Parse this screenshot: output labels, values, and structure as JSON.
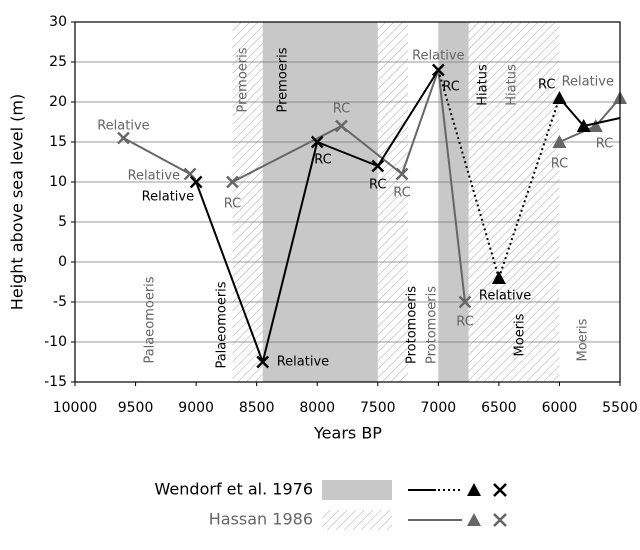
{
  "chart_data": {
    "type": "line",
    "xlabel": "Years BP",
    "ylabel": "Height above sea level (m)",
    "xlim": [
      10000,
      5500
    ],
    "xticks": [
      10000,
      9500,
      9000,
      8500,
      8000,
      7500,
      7000,
      6500,
      6000,
      5500
    ],
    "ylim": [
      -15,
      30
    ],
    "yticks": [
      -15,
      -10,
      -5,
      0,
      5,
      10,
      15,
      20,
      25,
      30
    ],
    "grid": true,
    "series": [
      {
        "name": "Wendorf et al. 1976",
        "color": "#000000",
        "region_style": "solid",
        "region_color": "#c8c8c8",
        "x": [
          9000,
          8450,
          8000,
          7500,
          7000,
          6500,
          6000,
          5800,
          5500
        ],
        "values": [
          10,
          -12.5,
          15,
          12,
          24,
          -2,
          20.5,
          17,
          18
        ],
        "markers": [
          "x",
          "x",
          "x",
          "x",
          "x",
          "triangle",
          "triangle",
          "triangle",
          null
        ],
        "point_labels": [
          "Relative",
          "Relative",
          "RC",
          "RC",
          "RC",
          "Relative",
          "RC",
          null,
          null
        ],
        "segment_styles": [
          "solid",
          "solid",
          "solid",
          "solid",
          "dotted",
          "dotted",
          "solid",
          "solid"
        ]
      },
      {
        "name": "Hassan 1986",
        "color": "#666666",
        "region_style": "hatch",
        "region_color": "#aaaaaa",
        "x": [
          9600,
          9050,
          8700,
          7800,
          7300,
          7000,
          6780,
          6000,
          5700,
          5500
        ],
        "values": [
          15.5,
          11,
          10,
          17,
          11,
          24,
          -5,
          15,
          17,
          20.5
        ],
        "markers": [
          "x",
          "x",
          "x",
          "x",
          "x",
          null,
          "x",
          "triangle",
          "triangle",
          "triangle"
        ],
        "point_labels": [
          "Relative",
          "Relative",
          "RC",
          "RC",
          "RC",
          "Relative",
          "RC",
          "RC",
          "RC",
          "Relative"
        ],
        "segment_styles": [
          "solid",
          null,
          "solid",
          "solid",
          "solid",
          "solid",
          null,
          "solid",
          "solid"
        ]
      }
    ],
    "regions": [
      {
        "series": 1,
        "range": [
          8700,
          7250
        ]
      },
      {
        "series": 0,
        "range": [
          8450,
          7500
        ]
      },
      {
        "series": 0,
        "range": [
          7000,
          6500
        ]
      },
      {
        "series": 1,
        "range": [
          6750,
          6000
        ]
      }
    ],
    "period_labels": [
      {
        "text": "Palaeomoeris",
        "series": 1
      },
      {
        "text": "Palaeomoeris",
        "series": 0
      },
      {
        "text": "Premoeris",
        "series": 1
      },
      {
        "text": "Premoeris",
        "series": 0
      },
      {
        "text": "Protomoeris",
        "series": 0
      },
      {
        "text": "Protomoeris",
        "series": 1
      },
      {
        "text": "Hiatus",
        "series": 0
      },
      {
        "text": "Hiatus",
        "series": 1
      },
      {
        "text": "Moeris",
        "series": 0
      },
      {
        "text": "Moeris",
        "series": 1
      }
    ]
  }
}
